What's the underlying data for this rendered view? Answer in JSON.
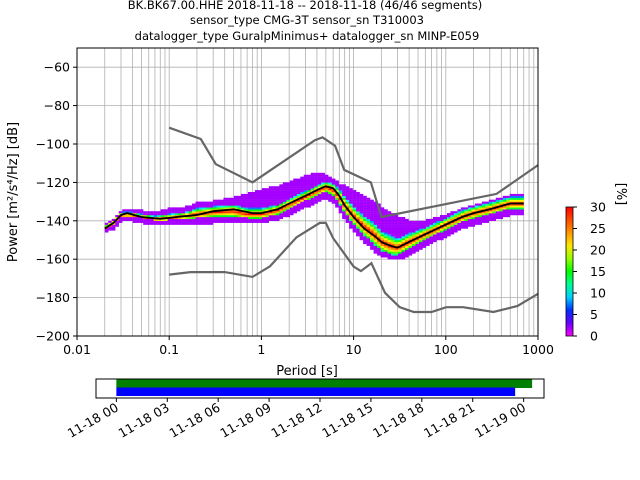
{
  "chart_data": [
    {
      "type": "heatmap",
      "title_lines": [
        "BK.BK67.00.HHE   2018-11-18 -- 2018-11-18  (46/46 segments)",
        "sensor_type CMG-3T sensor_sn T310003",
        "datalogger_type GuralpMinimus+ datalogger_sn MINP-E059"
      ],
      "xlabel": "Period [s]",
      "ylabel": "Power [m²/s⁴/Hz] [dB]",
      "xscale": "log",
      "xlim": [
        0.01,
        1000
      ],
      "ylim": [
        -200,
        -50
      ],
      "x_ticks": [
        0.01,
        0.1,
        1,
        10,
        100,
        1000
      ],
      "x_tick_labels": [
        "0.01",
        "0.1",
        "1",
        "10",
        "100",
        "1000"
      ],
      "y_ticks": [
        -200,
        -180,
        -160,
        -140,
        -120,
        -100,
        -80,
        -60
      ],
      "y_tick_labels": [
        "−200",
        "−180",
        "−160",
        "−140",
        "−120",
        "−100",
        "−80",
        "−60"
      ],
      "grid": true,
      "colorbar": {
        "label": "[%]",
        "range": [
          0,
          30
        ],
        "ticks": [
          0,
          5,
          10,
          15,
          20,
          25,
          30
        ],
        "colors": [
          "#ffffff",
          "#ff00ff",
          "#0000ff",
          "#00ffff",
          "#00ff00",
          "#ffff00",
          "#ff8000",
          "#ff0000"
        ]
      },
      "median": {
        "name": "median",
        "color": "#000000",
        "points": [
          [
            0.02,
            -144
          ],
          [
            0.025,
            -141
          ],
          [
            0.03,
            -137
          ],
          [
            0.035,
            -136
          ],
          [
            0.05,
            -138
          ],
          [
            0.08,
            -139
          ],
          [
            0.12,
            -138
          ],
          [
            0.2,
            -137
          ],
          [
            0.3,
            -135
          ],
          [
            0.5,
            -134
          ],
          [
            0.8,
            -136
          ],
          [
            1.0,
            -136
          ],
          [
            1.5,
            -134
          ],
          [
            2.0,
            -131
          ],
          [
            3.0,
            -127
          ],
          [
            4.0,
            -124
          ],
          [
            5.0,
            -122
          ],
          [
            6.0,
            -123
          ],
          [
            7.0,
            -127
          ],
          [
            8.0,
            -132
          ],
          [
            10.0,
            -138
          ],
          [
            13.0,
            -144
          ],
          [
            17.0,
            -148
          ],
          [
            20.0,
            -151
          ],
          [
            25.0,
            -153
          ],
          [
            30.0,
            -154
          ],
          [
            40.0,
            -151
          ],
          [
            60.0,
            -147
          ],
          [
            100.0,
            -142
          ],
          [
            150.0,
            -138
          ],
          [
            200.0,
            -136
          ],
          [
            300.0,
            -134
          ],
          [
            500.0,
            -131
          ],
          [
            700.0,
            -131
          ]
        ]
      },
      "histogram_band": [
        {
          "x": 0.02,
          "lo": -145,
          "hi": -143,
          "lo_sd": -146,
          "hi_sd": -142
        },
        {
          "x": 0.025,
          "lo": -142,
          "hi": -140,
          "lo_sd": -144,
          "hi_sd": -139
        },
        {
          "x": 0.03,
          "lo": -138,
          "hi": -136,
          "lo_sd": -140,
          "hi_sd": -135
        },
        {
          "x": 0.04,
          "lo": -138,
          "hi": -136,
          "lo_sd": -140,
          "hi_sd": -134
        },
        {
          "x": 0.05,
          "lo": -139,
          "hi": -137,
          "lo_sd": -141,
          "hi_sd": -135
        },
        {
          "x": 0.07,
          "lo": -140,
          "hi": -138,
          "lo_sd": -142,
          "hi_sd": -136
        },
        {
          "x": 0.1,
          "lo": -140,
          "hi": -137,
          "lo_sd": -142,
          "hi_sd": -134
        },
        {
          "x": 0.15,
          "lo": -139,
          "hi": -136,
          "lo_sd": -142,
          "hi_sd": -133
        },
        {
          "x": 0.2,
          "lo": -139,
          "hi": -134,
          "lo_sd": -142,
          "hi_sd": -131
        },
        {
          "x": 0.3,
          "lo": -138,
          "hi": -133,
          "lo_sd": -141,
          "hi_sd": -130
        },
        {
          "x": 0.5,
          "lo": -138,
          "hi": -132,
          "lo_sd": -141,
          "hi_sd": -128
        },
        {
          "x": 0.7,
          "lo": -139,
          "hi": -134,
          "lo_sd": -141,
          "hi_sd": -126
        },
        {
          "x": 1.0,
          "lo": -139,
          "hi": -134,
          "lo_sd": -141,
          "hi_sd": -124
        },
        {
          "x": 1.5,
          "lo": -137,
          "hi": -132,
          "lo_sd": -139,
          "hi_sd": -122
        },
        {
          "x": 2.0,
          "lo": -134,
          "hi": -129,
          "lo_sd": -137,
          "hi_sd": -120
        },
        {
          "x": 3.0,
          "lo": -130,
          "hi": -125,
          "lo_sd": -133,
          "hi_sd": -117
        },
        {
          "x": 4.0,
          "lo": -127,
          "hi": -122,
          "lo_sd": -130,
          "hi_sd": -115
        },
        {
          "x": 5.0,
          "lo": -125,
          "hi": -120,
          "lo_sd": -128,
          "hi_sd": -116
        },
        {
          "x": 6.0,
          "lo": -127,
          "hi": -121,
          "lo_sd": -130,
          "hi_sd": -118
        },
        {
          "x": 7.0,
          "lo": -131,
          "hi": -124,
          "lo_sd": -134,
          "hi_sd": -121
        },
        {
          "x": 8.0,
          "lo": -136,
          "hi": -128,
          "lo_sd": -139,
          "hi_sd": -122
        },
        {
          "x": 10.0,
          "lo": -142,
          "hi": -133,
          "lo_sd": -145,
          "hi_sd": -124
        },
        {
          "x": 13.0,
          "lo": -148,
          "hi": -138,
          "lo_sd": -151,
          "hi_sd": -127
        },
        {
          "x": 17.0,
          "lo": -153,
          "hi": -142,
          "lo_sd": -156,
          "hi_sd": -130
        },
        {
          "x": 20.0,
          "lo": -156,
          "hi": -146,
          "lo_sd": -158,
          "hi_sd": -133
        },
        {
          "x": 25.0,
          "lo": -158,
          "hi": -148,
          "lo_sd": -160,
          "hi_sd": -136
        },
        {
          "x": 30.0,
          "lo": -158,
          "hi": -150,
          "lo_sd": -160,
          "hi_sd": -138
        },
        {
          "x": 40.0,
          "lo": -155,
          "hi": -147,
          "lo_sd": -158,
          "hi_sd": -140
        },
        {
          "x": 60.0,
          "lo": -150,
          "hi": -144,
          "lo_sd": -153,
          "hi_sd": -140
        },
        {
          "x": 100.0,
          "lo": -145,
          "hi": -139,
          "lo_sd": -148,
          "hi_sd": -137
        },
        {
          "x": 150.0,
          "lo": -141,
          "hi": -135,
          "lo_sd": -144,
          "hi_sd": -134
        },
        {
          "x": 200.0,
          "lo": -139,
          "hi": -133,
          "lo_sd": -142,
          "hi_sd": -132
        },
        {
          "x": 300.0,
          "lo": -137,
          "hi": -131,
          "lo_sd": -140,
          "hi_sd": -130
        },
        {
          "x": 500.0,
          "lo": -134,
          "hi": -128,
          "lo_sd": -137,
          "hi_sd": -127
        },
        {
          "x": 700.0,
          "lo": -134,
          "hi": -128,
          "lo_sd": -137,
          "hi_sd": -126
        }
      ],
      "noise_models": [
        {
          "color": "#666666",
          "points": [
            [
              0.1,
              -91.5
            ],
            [
              0.22,
              -97.4
            ],
            [
              0.32,
              -110.5
            ],
            [
              0.8,
              -120
            ],
            [
              3.8,
              -98
            ],
            [
              4.6,
              -96.5
            ],
            [
              6.3,
              -101
            ],
            [
              7.9,
              -113.5
            ],
            [
              15.4,
              -120
            ],
            [
              20,
              -138
            ],
            [
              354.8,
              -126
            ],
            [
              1000,
              -111
            ]
          ]
        },
        {
          "color": "#666666",
          "points": [
            [
              0.1,
              -168
            ],
            [
              0.17,
              -166.7
            ],
            [
              0.4,
              -166.7
            ],
            [
              0.8,
              -169.2
            ],
            [
              1.24,
              -163.7
            ],
            [
              2.4,
              -148.6
            ],
            [
              4.3,
              -141.1
            ],
            [
              5,
              -141.1
            ],
            [
              6,
              -149
            ],
            [
              10,
              -163.8
            ],
            [
              12,
              -166.2
            ],
            [
              15.6,
              -162.1
            ],
            [
              21.9,
              -177.5
            ],
            [
              31.6,
              -185
            ],
            [
              45,
              -187.5
            ],
            [
              70,
              -187.5
            ],
            [
              101,
              -185
            ],
            [
              154,
              -185
            ],
            [
              328,
              -187.5
            ],
            [
              600,
              -184.4
            ],
            [
              1000,
              -178
            ]
          ]
        }
      ],
      "scatter_segments_note": ""
    },
    {
      "type": "timeline",
      "x_tick_labels": [
        "11-18 00",
        "11-18 03",
        "11-18 06",
        "11-18 09",
        "11-18 12",
        "11-18 15",
        "11-18 18",
        "11-18 21",
        "11-19 00"
      ],
      "x_ticks_hours": [
        0,
        3,
        6,
        9,
        12,
        15,
        18,
        21,
        24
      ],
      "xlim_hours": [
        -1.2,
        25.2
      ],
      "bars": [
        {
          "color": "#008000",
          "start_hours": 0.0,
          "end_hours": 24.5
        },
        {
          "color": "#0000ff",
          "start_hours": 0.0,
          "end_hours": 23.5
        }
      ]
    }
  ]
}
